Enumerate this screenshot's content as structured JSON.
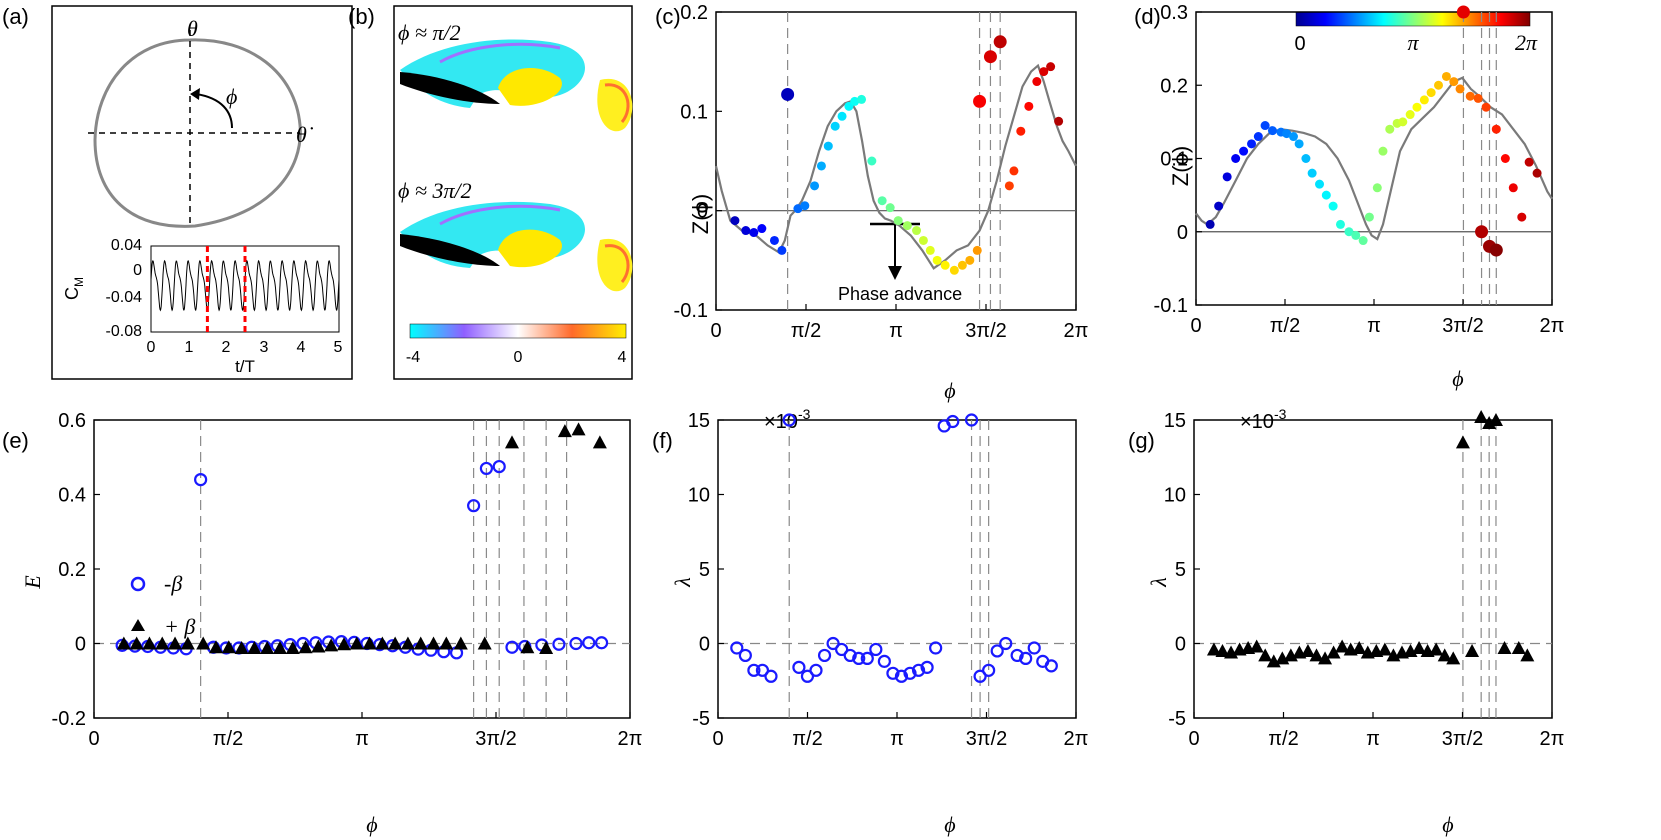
{
  "panels": {
    "a": {
      "label": "(a)",
      "theta_label": "θ",
      "thetadot_label": "θ̇",
      "phi_label": "ϕ",
      "inset": {
        "ylabel": "C",
        "ylabel_sub": "M",
        "xlabel": "t/T",
        "yticks": [
          "0.04",
          "0",
          "-0.04",
          "-0.08"
        ],
        "xticks": [
          "0",
          "1",
          "2",
          "3",
          "4",
          "5"
        ],
        "ylim": [
          -0.08,
          0.04
        ],
        "xlim": [
          0,
          5
        ],
        "markers_t": [
          1.5,
          2.5
        ]
      }
    },
    "b": {
      "label": "(b)",
      "snapshot1_label": "ϕ ≈ π/2",
      "snapshot2_label": "ϕ ≈ 3π/2",
      "colorbar_ticks": [
        "-4",
        "0",
        "4"
      ],
      "colorbar_colors": [
        "#00ffff",
        "#8f5fff",
        "#ffffff",
        "#ff6a2a",
        "#ffef00"
      ]
    },
    "c": {
      "label": "(c)",
      "ylabel": "Z(ϕ)",
      "xlabel": "ϕ",
      "annotation": "Phase advance"
    },
    "d": {
      "label": "(d)",
      "ylabel": "Z(ϕ)",
      "xlabel": "ϕ",
      "colorbar_ticks": [
        "0",
        "π",
        "2π"
      ]
    },
    "e": {
      "label": "(e)",
      "ylabel": "E",
      "xlabel": "ϕ",
      "legend": [
        "-β",
        "+ β"
      ]
    },
    "f": {
      "label": "(f)",
      "ylabel": "λ",
      "xlabel": "ϕ",
      "exponent": "×10"
    },
    "g": {
      "label": "(g)",
      "ylabel": "λ",
      "xlabel": "ϕ",
      "exponent": "×10"
    }
  },
  "colors": {
    "curve": "#7a7a7a",
    "blue_marker": "#1a1aff",
    "black_marker": "#000000",
    "dashed": "#8a8a8a",
    "red_marker": "#ff0000",
    "jet": [
      "#00008f",
      "#0000ff",
      "#0080ff",
      "#00ffff",
      "#80ff80",
      "#ffff00",
      "#ff8000",
      "#ff0000",
      "#800000"
    ]
  },
  "chart_data": [
    {
      "id": "c",
      "type": "scatter",
      "title": "",
      "xlabel": "ϕ",
      "ylabel": "Z(ϕ)",
      "xlim": [
        0,
        6.2832
      ],
      "ylim": [
        -0.1,
        0.2
      ],
      "xticks": [
        0,
        1.5708,
        3.1416,
        4.7124,
        6.2832
      ],
      "xtick_labels": [
        "0",
        "π/2",
        "π",
        "3π/2",
        "2π"
      ],
      "yticks": [
        -0.1,
        0,
        0.1,
        0.2
      ],
      "ytick_labels": [
        "-0.1",
        "0",
        "0.1",
        "0.2"
      ],
      "curve": {
        "x": [
          0,
          0.1,
          0.25,
          0.45,
          0.7,
          0.9,
          1.1,
          1.2,
          1.3,
          1.38,
          1.5,
          1.65,
          1.8,
          1.95,
          2.1,
          2.25,
          2.35,
          2.45,
          2.55,
          2.65,
          2.75,
          2.85,
          2.95,
          3.05,
          3.2,
          3.4,
          3.6,
          3.8,
          4.0,
          4.2,
          4.4,
          4.6,
          4.75,
          4.9,
          5.05,
          5.2,
          5.35,
          5.5,
          5.62,
          5.72,
          5.82,
          5.95,
          6.05,
          6.15,
          6.2832
        ],
        "y": [
          0.045,
          0.02,
          -0.01,
          -0.02,
          -0.025,
          -0.035,
          -0.042,
          -0.03,
          -0.005,
          0.0,
          0.01,
          0.03,
          0.06,
          0.085,
          0.1,
          0.108,
          0.11,
          0.1,
          0.07,
          0.035,
          0.01,
          -0.002,
          -0.008,
          -0.01,
          -0.015,
          -0.025,
          -0.04,
          -0.058,
          -0.05,
          -0.04,
          -0.035,
          -0.02,
          0.0,
          0.03,
          0.065,
          0.095,
          0.125,
          0.14,
          0.146,
          0.13,
          0.11,
          0.085,
          0.07,
          0.06,
          0.045
        ]
      },
      "series": [
        {
          "name": "PRC samples",
          "x": [
            0.33,
            0.52,
            0.66,
            0.8,
            1.02,
            1.15,
            1.43,
            1.55,
            1.72,
            1.84,
            1.96,
            2.08,
            2.2,
            2.32,
            2.42,
            2.54,
            2.72,
            2.9,
            3.04,
            3.18,
            3.34,
            3.5,
            3.62,
            3.74,
            3.86,
            4.0,
            4.16,
            4.3,
            4.43,
            4.56,
            5.12,
            5.2,
            5.32,
            5.46,
            5.6,
            5.72,
            5.84,
            5.98
          ],
          "y": [
            -0.01,
            -0.02,
            -0.022,
            -0.018,
            -0.03,
            -0.04,
            0.002,
            0.005,
            0.025,
            0.045,
            0.065,
            0.085,
            0.095,
            0.105,
            0.11,
            0.112,
            0.05,
            0.01,
            0.003,
            -0.01,
            -0.015,
            -0.02,
            -0.03,
            -0.04,
            -0.05,
            -0.055,
            -0.06,
            -0.055,
            -0.05,
            -0.04,
            0.025,
            0.04,
            0.08,
            0.105,
            0.13,
            0.14,
            0.145,
            0.09
          ]
        },
        {
          "name": "outliers",
          "x": [
            1.25,
            4.6,
            4.79,
            4.96
          ],
          "y": [
            0.117,
            0.11,
            0.155,
            0.17
          ]
        }
      ],
      "vlines": [
        1.25,
        4.6,
        4.79,
        4.96
      ]
    },
    {
      "id": "d",
      "type": "scatter",
      "title": "",
      "xlabel": "ϕ",
      "ylabel": "Z(ϕ)",
      "xlim": [
        0,
        6.2832
      ],
      "ylim": [
        -0.1,
        0.3
      ],
      "xticks": [
        0,
        1.5708,
        3.1416,
        4.7124,
        6.2832
      ],
      "xtick_labels": [
        "0",
        "π/2",
        "π",
        "3π/2",
        "2π"
      ],
      "yticks": [
        -0.1,
        0,
        0.1,
        0.2,
        0.3
      ],
      "ytick_labels": [
        "-0.1",
        "0",
        "0.1",
        "0.2",
        "0.3"
      ],
      "curve": {
        "x": [
          0,
          0.1,
          0.2,
          0.35,
          0.5,
          0.7,
          0.9,
          1.1,
          1.3,
          1.5,
          1.7,
          1.9,
          2.1,
          2.3,
          2.5,
          2.7,
          2.85,
          3.0,
          3.1,
          3.2,
          3.3,
          3.45,
          3.6,
          3.8,
          4.0,
          4.2,
          4.4,
          4.55,
          4.7,
          4.85,
          5.0,
          5.2,
          5.4,
          5.6,
          5.8,
          6.0,
          6.2,
          6.2832
        ],
        "y": [
          0.025,
          0.015,
          0.01,
          0.02,
          0.04,
          0.07,
          0.1,
          0.12,
          0.135,
          0.14,
          0.138,
          0.135,
          0.13,
          0.12,
          0.1,
          0.07,
          0.04,
          0.01,
          -0.005,
          -0.01,
          0.01,
          0.06,
          0.11,
          0.14,
          0.155,
          0.17,
          0.19,
          0.205,
          0.21,
          0.195,
          0.185,
          0.17,
          0.16,
          0.14,
          0.12,
          0.09,
          0.055,
          0.045
        ]
      },
      "series": [
        {
          "name": "PRC samples",
          "x": [
            0.25,
            0.4,
            0.55,
            0.7,
            0.84,
            0.98,
            1.1,
            1.22,
            1.35,
            1.5,
            1.6,
            1.72,
            1.82,
            1.94,
            2.05,
            2.18,
            2.3,
            2.42,
            2.55,
            2.7,
            2.82,
            2.95,
            3.06,
            3.2,
            3.3,
            3.42,
            3.55,
            3.65,
            3.78,
            3.9,
            4.03,
            4.15,
            4.28,
            4.42,
            4.55,
            4.66,
            4.84,
            4.98,
            5.12,
            5.3,
            5.46,
            5.6,
            5.75,
            5.88,
            6.02
          ],
          "y": [
            0.01,
            0.035,
            0.075,
            0.1,
            0.11,
            0.12,
            0.13,
            0.145,
            0.138,
            0.136,
            0.134,
            0.13,
            0.12,
            0.1,
            0.08,
            0.065,
            0.05,
            0.035,
            0.01,
            0.0,
            -0.005,
            -0.012,
            0.02,
            0.06,
            0.11,
            0.14,
            0.148,
            0.15,
            0.16,
            0.17,
            0.18,
            0.19,
            0.2,
            0.212,
            0.205,
            0.195,
            0.185,
            0.182,
            0.17,
            0.14,
            0.1,
            0.06,
            0.02,
            0.095,
            0.08
          ]
        },
        {
          "name": "outliers",
          "x": [
            4.72,
            5.04,
            5.18,
            5.3
          ],
          "y": [
            0.3,
            0.0,
            -0.02,
            -0.025
          ]
        }
      ],
      "vlines": [
        4.72,
        5.04,
        5.18,
        5.3
      ]
    },
    {
      "id": "e",
      "type": "scatter",
      "title": "",
      "xlabel": "ϕ",
      "ylabel": "E",
      "xlim": [
        0,
        6.2832
      ],
      "ylim": [
        -0.2,
        0.6
      ],
      "xticks": [
        0,
        1.5708,
        3.1416,
        4.7124,
        6.2832
      ],
      "xtick_labels": [
        "0",
        "π/2",
        "π",
        "3π/2",
        "2π"
      ],
      "yticks": [
        -0.2,
        0,
        0.2,
        0.4,
        0.6
      ],
      "ytick_labels": [
        "-0.2",
        "0",
        "0.2",
        "0.4",
        "0.6"
      ],
      "legend": [
        "-β",
        "+ β"
      ],
      "series": [
        {
          "name": "-β",
          "marker": "circle",
          "x": [
            0.33,
            0.48,
            0.63,
            0.78,
            0.93,
            1.08,
            1.25,
            1.4,
            1.55,
            1.7,
            1.85,
            2.0,
            2.15,
            2.3,
            2.45,
            2.6,
            2.75,
            2.9,
            3.05,
            3.2,
            3.35,
            3.5,
            3.65,
            3.8,
            3.95,
            4.1,
            4.25,
            4.45,
            4.6,
            4.75,
            4.9,
            5.05,
            5.25,
            5.45,
            5.65,
            5.8,
            5.95
          ],
          "y": [
            -0.005,
            -0.007,
            -0.008,
            -0.01,
            -0.012,
            -0.014,
            0.44,
            -0.01,
            -0.012,
            -0.012,
            -0.01,
            -0.008,
            -0.006,
            -0.003,
            0.0,
            0.002,
            0.004,
            0.005,
            0.003,
            0.0,
            -0.003,
            -0.006,
            -0.01,
            -0.015,
            -0.018,
            -0.022,
            -0.025,
            0.37,
            0.47,
            0.475,
            -0.01,
            -0.008,
            -0.004,
            -0.002,
            0.0,
            0.002,
            0.002
          ]
        },
        {
          "name": "+ β",
          "marker": "triangle",
          "x": [
            0.35,
            0.5,
            0.65,
            0.8,
            0.95,
            1.1,
            1.28,
            1.43,
            1.58,
            1.73,
            1.88,
            2.03,
            2.18,
            2.33,
            2.48,
            2.63,
            2.78,
            2.93,
            3.08,
            3.23,
            3.38,
            3.53,
            3.68,
            3.83,
            3.98,
            4.13,
            4.3,
            4.58,
            4.9,
            5.08,
            5.3,
            5.52,
            5.68,
            5.93
          ],
          "y": [
            0.0,
            0.0,
            0.0,
            0.0,
            0.0,
            0.0,
            0.0,
            -0.01,
            -0.01,
            -0.012,
            -0.012,
            -0.012,
            -0.012,
            -0.012,
            -0.01,
            -0.008,
            -0.005,
            -0.002,
            0.0,
            0.0,
            0.0,
            0.0,
            0.0,
            0.0,
            0.0,
            0.0,
            0.0,
            0.0,
            0.54,
            -0.01,
            -0.012,
            0.57,
            0.575,
            0.54
          ]
        }
      ],
      "vlines": [
        1.25,
        4.45,
        4.6,
        4.75,
        5.04,
        5.3,
        5.54
      ]
    },
    {
      "id": "f",
      "type": "scatter",
      "title": "",
      "xlabel": "ϕ",
      "ylabel": "λ",
      "exponent": "-3",
      "xlim": [
        0,
        6.2832
      ],
      "ylim": [
        -5,
        15
      ],
      "xticks": [
        0,
        1.5708,
        3.1416,
        4.7124,
        6.2832
      ],
      "xtick_labels": [
        "0",
        "π/2",
        "π",
        "3π/2",
        "2π"
      ],
      "yticks": [
        -5,
        0,
        5,
        10,
        15
      ],
      "ytick_labels": [
        "-5",
        "0",
        "5",
        "10",
        "15"
      ],
      "series": [
        {
          "name": "-β",
          "marker": "circle",
          "x": [
            0.33,
            0.48,
            0.63,
            0.78,
            0.93,
            1.25,
            1.42,
            1.57,
            1.72,
            1.87,
            2.02,
            2.17,
            2.32,
            2.47,
            2.62,
            2.77,
            2.92,
            3.07,
            3.22,
            3.37,
            3.52,
            3.67,
            3.82,
            3.97,
            4.12,
            4.45,
            4.6,
            4.75,
            4.9,
            5.05,
            5.25,
            5.4,
            5.55,
            5.7,
            5.85
          ],
          "y": [
            -0.3,
            -0.8,
            -1.8,
            -1.8,
            -2.2,
            15.0,
            -1.6,
            -2.2,
            -1.8,
            -0.8,
            0.0,
            -0.4,
            -0.8,
            -1.0,
            -1.0,
            -0.4,
            -1.2,
            -2.0,
            -2.2,
            -2.0,
            -1.8,
            -1.6,
            -0.3,
            14.6,
            14.9,
            15.0,
            -2.2,
            -1.8,
            -0.5,
            0.0,
            -0.8,
            -1.0,
            -0.3,
            -1.2,
            -1.5
          ]
        }
      ],
      "vlines": [
        1.25,
        4.45,
        4.6,
        4.75
      ]
    },
    {
      "id": "g",
      "type": "scatter",
      "title": "",
      "xlabel": "ϕ",
      "ylabel": "λ",
      "exponent": "-3",
      "xlim": [
        0,
        6.2832
      ],
      "ylim": [
        -5,
        15
      ],
      "xticks": [
        0,
        1.5708,
        3.1416,
        4.7124,
        6.2832
      ],
      "xtick_labels": [
        "0",
        "π/2",
        "π",
        "3π/2",
        "2π"
      ],
      "yticks": [
        -5,
        0,
        5,
        10,
        15
      ],
      "ytick_labels": [
        "-5",
        "0",
        "5",
        "10",
        "15"
      ],
      "series": [
        {
          "name": "+ β",
          "marker": "triangle",
          "x": [
            0.35,
            0.5,
            0.65,
            0.8,
            0.95,
            1.1,
            1.25,
            1.4,
            1.55,
            1.7,
            1.85,
            2.0,
            2.15,
            2.3,
            2.45,
            2.6,
            2.75,
            2.9,
            3.05,
            3.2,
            3.35,
            3.5,
            3.65,
            3.8,
            3.95,
            4.1,
            4.25,
            4.4,
            4.55,
            4.72,
            4.88,
            5.04,
            5.18,
            5.3,
            5.45,
            5.7,
            5.85
          ],
          "y": [
            -0.4,
            -0.5,
            -0.6,
            -0.4,
            -0.3,
            -0.2,
            -0.8,
            -1.2,
            -1.0,
            -0.8,
            -0.6,
            -0.5,
            -0.8,
            -1.0,
            -0.6,
            -0.2,
            -0.4,
            -0.3,
            -0.6,
            -0.5,
            -0.4,
            -0.8,
            -0.6,
            -0.5,
            -0.3,
            -0.5,
            -0.4,
            -0.8,
            -1.0,
            13.5,
            -0.5,
            15.2,
            14.8,
            15.0,
            -0.3,
            -0.3,
            -0.8
          ]
        }
      ],
      "vlines": [
        4.72,
        5.04,
        5.18,
        5.3
      ]
    }
  ]
}
